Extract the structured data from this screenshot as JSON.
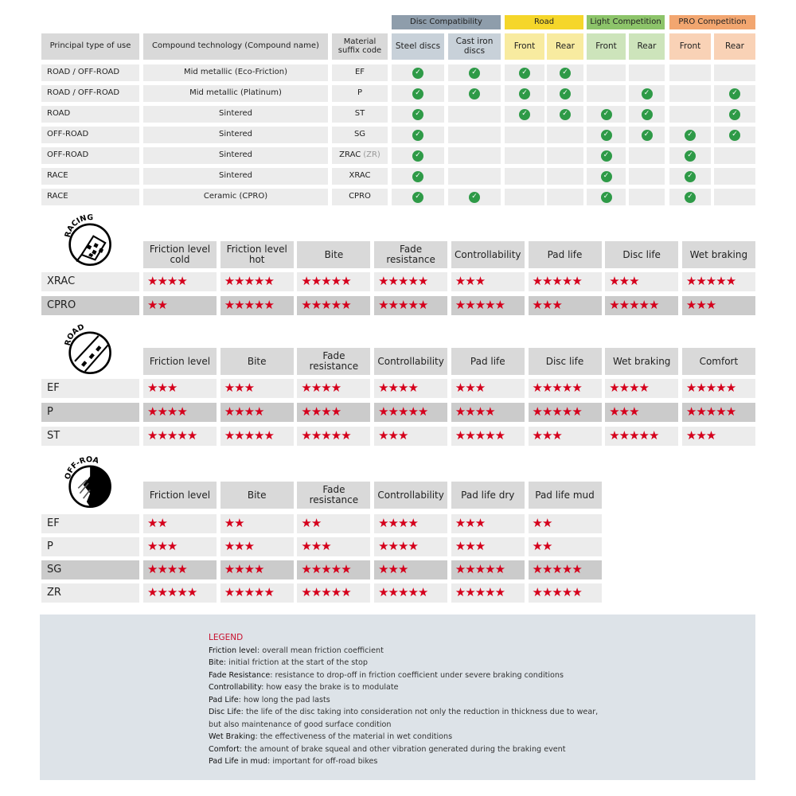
{
  "compat_table": {
    "groups": [
      {
        "label": "Disc Compatibility",
        "color": "#8e9dab",
        "sub_color": "#c8d1d9"
      },
      {
        "label": "Road",
        "color": "#f5d62a",
        "sub_color": "#f8eba0"
      },
      {
        "label": "Light Competition",
        "color": "#8dc46a",
        "sub_color": "#cde4bb"
      },
      {
        "label": "PRO Competition",
        "color": "#f2a670",
        "sub_color": "#f9d2b6"
      }
    ],
    "headers": [
      "Principal type of use",
      "Compound technology (Compound name)",
      "Material suffix code",
      "Steel discs",
      "Cast iron discs",
      "Front",
      "Rear",
      "Front",
      "Rear",
      "Front",
      "Rear"
    ],
    "rows": [
      {
        "use": "ROAD / OFF-ROAD",
        "compound": "Mid metallic (Eco-Friction)",
        "code": "EF",
        "code_extra": "",
        "checks": [
          1,
          1,
          1,
          1,
          0,
          0,
          0,
          0
        ]
      },
      {
        "use": "ROAD / OFF-ROAD",
        "compound": "Mid metallic (Platinum)",
        "code": "P",
        "code_extra": "",
        "checks": [
          1,
          1,
          1,
          1,
          0,
          1,
          0,
          1
        ]
      },
      {
        "use": "ROAD",
        "compound": "Sintered",
        "code": "ST",
        "code_extra": "",
        "checks": [
          1,
          0,
          1,
          1,
          1,
          1,
          0,
          1
        ]
      },
      {
        "use": "OFF-ROAD",
        "compound": "Sintered",
        "code": "SG",
        "code_extra": "",
        "checks": [
          1,
          0,
          0,
          0,
          1,
          1,
          1,
          1
        ]
      },
      {
        "use": "OFF-ROAD",
        "compound": "Sintered",
        "code": "ZRAC",
        "code_extra": "(ZR)",
        "checks": [
          1,
          0,
          0,
          0,
          1,
          0,
          1,
          0
        ]
      },
      {
        "use": "RACE",
        "compound": "Sintered",
        "code": "XRAC",
        "code_extra": "",
        "checks": [
          1,
          0,
          0,
          0,
          1,
          0,
          1,
          0
        ]
      },
      {
        "use": "RACE",
        "compound": "Ceramic (CPRO)",
        "code": "CPRO",
        "code_extra": "",
        "checks": [
          1,
          1,
          0,
          0,
          1,
          0,
          1,
          0
        ]
      }
    ],
    "check_color": "#2e9a47"
  },
  "rating_tables": [
    {
      "icon_label": "RACING",
      "icon": "checkered-flag-icon",
      "headers": [
        "Friction level cold",
        "Friction level hot",
        "Bite",
        "Fade resistance",
        "Controllability",
        "Pad life",
        "Disc life",
        "Wet braking"
      ],
      "rows": [
        {
          "code": "XRAC",
          "highlight": false,
          "stars": [
            4,
            5,
            5,
            5,
            3,
            5,
            3,
            5
          ]
        },
        {
          "code": "CPRO",
          "highlight": true,
          "stars": [
            2,
            5,
            5,
            5,
            5,
            3,
            5,
            3
          ]
        }
      ]
    },
    {
      "icon_label": "ROAD",
      "icon": "road-icon",
      "headers": [
        "Friction level",
        "Bite",
        "Fade resistance",
        "Controllability",
        "Pad life",
        "Disc life",
        "Wet braking",
        "Comfort"
      ],
      "rows": [
        {
          "code": "EF",
          "highlight": false,
          "stars": [
            3,
            3,
            4,
            4,
            3,
            5,
            4,
            5
          ]
        },
        {
          "code": "P",
          "highlight": true,
          "stars": [
            4,
            4,
            4,
            5,
            4,
            5,
            3,
            5
          ]
        },
        {
          "code": "ST",
          "highlight": false,
          "stars": [
            5,
            5,
            5,
            3,
            5,
            3,
            5,
            3
          ]
        }
      ]
    },
    {
      "icon_label": "OFF-ROAD",
      "icon": "off-road-icon",
      "headers": [
        "Friction level",
        "Bite",
        "Fade resistance",
        "Controllability",
        "Pad life dry",
        "Pad life mud"
      ],
      "rows": [
        {
          "code": "EF",
          "highlight": false,
          "stars": [
            2,
            2,
            2,
            4,
            3,
            2
          ]
        },
        {
          "code": "P",
          "highlight": false,
          "stars": [
            3,
            3,
            3,
            4,
            3,
            2
          ]
        },
        {
          "code": "SG",
          "highlight": true,
          "stars": [
            4,
            4,
            5,
            3,
            5,
            5
          ]
        },
        {
          "code": "ZR",
          "highlight": false,
          "stars": [
            5,
            5,
            5,
            5,
            5,
            5
          ]
        }
      ]
    }
  ],
  "star_color": "#d5001c",
  "legend": {
    "title": "LEGEND",
    "items": [
      {
        "term": "Friction level",
        "def": ": overall mean friction coefficient"
      },
      {
        "term": "Bite",
        "def": ": initial friction at the start of the stop"
      },
      {
        "term": "Fade Resistance",
        "def": ": resistance to drop-off in friction coefficient under severe braking conditions"
      },
      {
        "term": "Controllability",
        "def": ": how easy the brake is to modulate"
      },
      {
        "term": "Pad Life",
        "def": ": how long the pad lasts"
      },
      {
        "term": "Disc Life",
        "def": ": the life of the disc taking into consideration not only the reduction in thickness due to wear,"
      },
      {
        "term": "",
        "def": "but also maintenance of good surface condition"
      },
      {
        "term": "Wet Braking",
        "def": ": the effectiveness of the material in wet conditions"
      },
      {
        "term": "Comfort",
        "def": ": the amount of brake squeal and other vibration generated during the braking event"
      },
      {
        "term": "Pad Life in mud",
        "def": ": important for off-road bikes"
      }
    ]
  }
}
